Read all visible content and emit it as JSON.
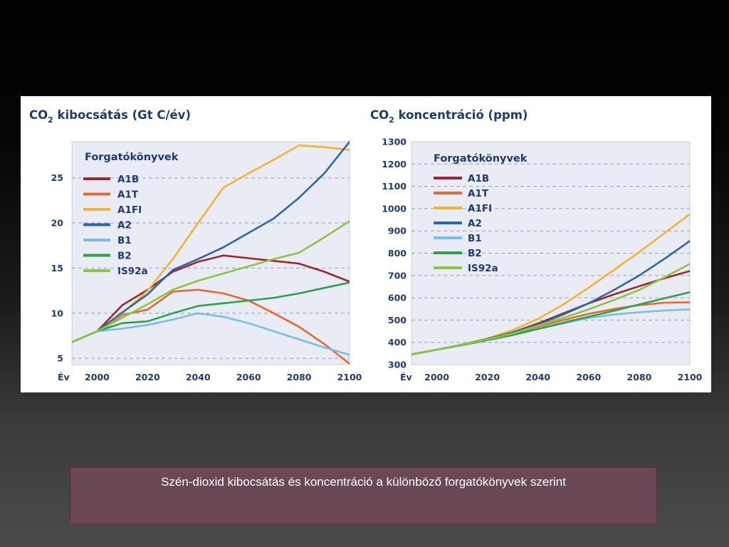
{
  "caption": "Szén-dioxid kibocsátás és koncentráció a különböző forgatókönyvek szerint",
  "chart_data": [
    {
      "type": "line",
      "title_parts": [
        "CO",
        "2",
        " kibocsátás (Gt C/év)"
      ],
      "xlabel": "Év",
      "ylabel": "",
      "xlim": [
        1990,
        2100
      ],
      "ylim": [
        4.3,
        29
      ],
      "xticks": [
        2000,
        2020,
        2040,
        2060,
        2080,
        2100
      ],
      "yticks": [
        5,
        10,
        15,
        20,
        25
      ],
      "grid": "horizontal dashed",
      "legend_title": "Forgatókönyvek",
      "legend_position": "top-left",
      "series": [
        {
          "name": "A1B",
          "color": "#a0262b",
          "x": [
            1990,
            2000,
            2010,
            2020,
            2030,
            2040,
            2050,
            2060,
            2070,
            2080,
            2090,
            2100
          ],
          "y": [
            6.8,
            8.0,
            10.9,
            12.6,
            14.6,
            15.7,
            16.4,
            16.1,
            15.8,
            15.5,
            14.6,
            13.5
          ]
        },
        {
          "name": "A1T",
          "color": "#e8692a",
          "x": [
            1990,
            2000,
            2010,
            2020,
            2030,
            2040,
            2050,
            2060,
            2070,
            2080,
            2090,
            2100
          ],
          "y": [
            6.8,
            8.0,
            9.8,
            10.4,
            12.4,
            12.6,
            12.2,
            11.4,
            10.0,
            8.5,
            6.6,
            4.4
          ]
        },
        {
          "name": "A1FI",
          "color": "#f5b52b",
          "x": [
            1990,
            2000,
            2010,
            2020,
            2030,
            2040,
            2050,
            2060,
            2070,
            2080,
            2090,
            2100
          ],
          "y": [
            6.8,
            8.0,
            10.0,
            12.5,
            16.0,
            20.0,
            23.9,
            25.5,
            27.0,
            28.6,
            28.4,
            28.1
          ]
        },
        {
          "name": "A2",
          "color": "#2a68ae",
          "x": [
            1990,
            2000,
            2010,
            2020,
            2030,
            2040,
            2050,
            2060,
            2070,
            2080,
            2090,
            2100
          ],
          "y": [
            6.8,
            8.0,
            10.1,
            12.1,
            14.8,
            16.0,
            17.3,
            18.9,
            20.5,
            22.8,
            25.5,
            29.0
          ]
        },
        {
          "name": "B1",
          "color": "#78bfe6",
          "x": [
            1990,
            2000,
            2010,
            2020,
            2030,
            2040,
            2050,
            2060,
            2070,
            2080,
            2090,
            2100
          ],
          "y": [
            6.8,
            8.0,
            8.3,
            8.7,
            9.3,
            10.0,
            9.6,
            8.9,
            8.0,
            7.1,
            6.2,
            5.4
          ]
        },
        {
          "name": "B2",
          "color": "#2aa349",
          "x": [
            1990,
            2000,
            2010,
            2020,
            2030,
            2040,
            2050,
            2060,
            2070,
            2080,
            2090,
            2100
          ],
          "y": [
            6.8,
            8.0,
            8.9,
            9.1,
            10.0,
            10.8,
            11.1,
            11.4,
            11.7,
            12.2,
            12.8,
            13.4
          ]
        },
        {
          "name": "IS92a",
          "color": "#8cc63f",
          "x": [
            1990,
            2000,
            2010,
            2020,
            2030,
            2040,
            2050,
            2060,
            2070,
            2080,
            2090,
            2100
          ],
          "y": [
            6.8,
            8.0,
            9.5,
            11.0,
            12.6,
            13.6,
            14.4,
            15.2,
            16.0,
            16.7,
            18.4,
            20.2
          ]
        }
      ]
    },
    {
      "type": "line",
      "title_parts": [
        "CO",
        "2",
        " koncentráció (ppm)"
      ],
      "xlabel": "Év",
      "ylabel": "",
      "xlim": [
        1990,
        2100
      ],
      "ylim": [
        300,
        1300
      ],
      "xticks": [
        2000,
        2020,
        2040,
        2060,
        2080,
        2100
      ],
      "yticks": [
        300,
        400,
        500,
        600,
        700,
        800,
        900,
        1000,
        1100,
        1200,
        1300
      ],
      "grid": "horizontal dashed",
      "legend_title": "Forgatókönyvek",
      "legend_position": "top-left",
      "series": [
        {
          "name": "A1B",
          "color": "#a0262b",
          "x": [
            1990,
            2000,
            2010,
            2020,
            2030,
            2040,
            2050,
            2060,
            2070,
            2080,
            2090,
            2100
          ],
          "y": [
            346,
            367,
            390,
            415,
            445,
            485,
            530,
            575,
            615,
            652,
            688,
            720
          ]
        },
        {
          "name": "A1T",
          "color": "#e8692a",
          "x": [
            1990,
            2000,
            2010,
            2020,
            2030,
            2040,
            2050,
            2060,
            2070,
            2080,
            2090,
            2100
          ],
          "y": [
            346,
            367,
            389,
            411,
            440,
            470,
            500,
            528,
            550,
            567,
            578,
            580
          ]
        },
        {
          "name": "A1FI",
          "color": "#f5b52b",
          "x": [
            1990,
            2000,
            2010,
            2020,
            2030,
            2040,
            2050,
            2060,
            2070,
            2080,
            2090,
            2100
          ],
          "y": [
            346,
            367,
            390,
            418,
            455,
            505,
            570,
            645,
            725,
            805,
            890,
            975
          ]
        },
        {
          "name": "A2",
          "color": "#2a68ae",
          "x": [
            1990,
            2000,
            2010,
            2020,
            2030,
            2040,
            2050,
            2060,
            2070,
            2080,
            2090,
            2100
          ],
          "y": [
            346,
            367,
            390,
            415,
            445,
            480,
            525,
            575,
            635,
            700,
            775,
            855
          ]
        },
        {
          "name": "B1",
          "color": "#78bfe6",
          "x": [
            1990,
            2000,
            2010,
            2020,
            2030,
            2040,
            2050,
            2060,
            2070,
            2080,
            2090,
            2100
          ],
          "y": [
            346,
            367,
            388,
            410,
            433,
            460,
            485,
            510,
            525,
            535,
            543,
            548
          ]
        },
        {
          "name": "B2",
          "color": "#2aa349",
          "x": [
            1990,
            2000,
            2010,
            2020,
            2030,
            2040,
            2050,
            2060,
            2070,
            2080,
            2090,
            2100
          ],
          "y": [
            346,
            367,
            388,
            410,
            433,
            460,
            488,
            515,
            542,
            570,
            598,
            625
          ]
        },
        {
          "name": "IS92a",
          "color": "#8cc63f",
          "x": [
            1990,
            2000,
            2010,
            2020,
            2030,
            2040,
            2050,
            2060,
            2070,
            2080,
            2090,
            2100
          ],
          "y": [
            346,
            367,
            390,
            413,
            440,
            475,
            510,
            548,
            590,
            635,
            692,
            752
          ]
        }
      ]
    }
  ]
}
